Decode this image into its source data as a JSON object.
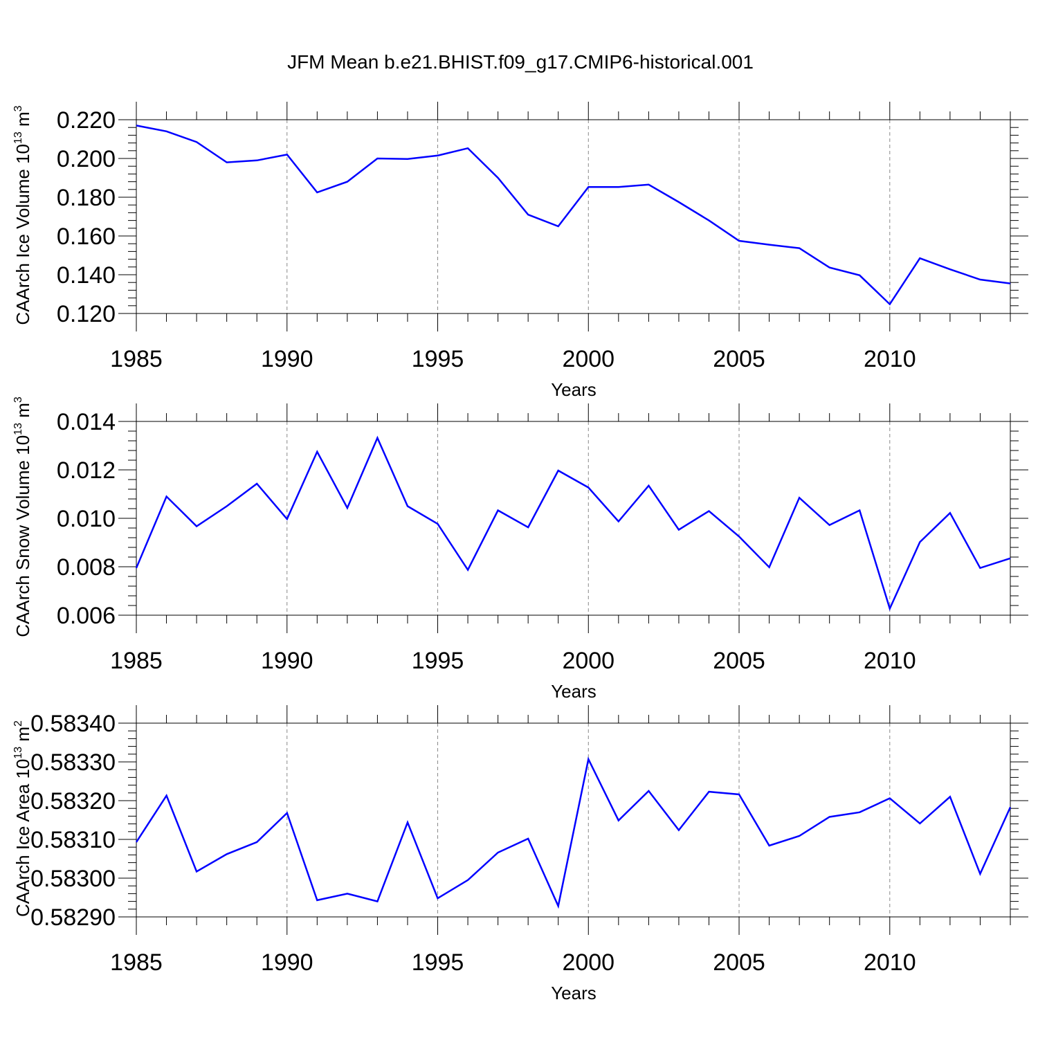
{
  "title": "JFM Mean b.e21.BHIST.f09_g17.CMIP6-historical.001",
  "colors": {
    "line": "#0000ff",
    "axis": "#000000",
    "grid": "#888888",
    "background": "#ffffff"
  },
  "chart_data": [
    {
      "type": "line",
      "ylabel": "CAArch Ice Volume 10",
      "ylabel_exp": "13",
      "ylabel_unit": " m",
      "ylabel_unit_exp": "3",
      "xlabel": "Years",
      "xlim": [
        1985,
        2014
      ],
      "ylim": [
        0.12,
        0.22
      ],
      "xticks": [
        "1985",
        "1990",
        "1995",
        "2000",
        "2005",
        "2010"
      ],
      "yticks": [
        "0.120",
        "0.140",
        "0.160",
        "0.180",
        "0.200",
        "0.220"
      ],
      "grid": "vertical dashed at major x ticks",
      "x": [
        1985,
        1986,
        1987,
        1988,
        1989,
        1990,
        1991,
        1992,
        1993,
        1994,
        1995,
        1996,
        1997,
        1998,
        1999,
        2000,
        2001,
        2002,
        2003,
        2004,
        2005,
        2006,
        2007,
        2008,
        2009,
        2010,
        2011,
        2012,
        2013,
        2014
      ],
      "values": [
        0.217,
        0.214,
        0.2085,
        0.198,
        0.199,
        0.202,
        0.1825,
        0.188,
        0.2,
        0.1997,
        0.2015,
        0.2053,
        0.19,
        0.171,
        0.165,
        0.1853,
        0.1853,
        0.1865,
        0.1775,
        0.168,
        0.1575,
        0.1555,
        0.1537,
        0.1437,
        0.1397,
        0.1248,
        0.1485,
        0.1428,
        0.1375,
        0.1355
      ]
    },
    {
      "type": "line",
      "ylabel": "CAArch Snow Volume 10",
      "ylabel_exp": "13",
      "ylabel_unit": " m",
      "ylabel_unit_exp": "3",
      "xlabel": "Years",
      "xlim": [
        1985,
        2014
      ],
      "ylim": [
        0.006,
        0.014
      ],
      "xticks": [
        "1985",
        "1990",
        "1995",
        "2000",
        "2005",
        "2010"
      ],
      "yticks": [
        "0.006",
        "0.008",
        "0.010",
        "0.012",
        "0.014"
      ],
      "grid": "vertical dashed at major x ticks",
      "x": [
        1985,
        1986,
        1987,
        1988,
        1989,
        1990,
        1991,
        1992,
        1993,
        1994,
        1995,
        1996,
        1997,
        1998,
        1999,
        2000,
        2001,
        2002,
        2003,
        2004,
        2005,
        2006,
        2007,
        2008,
        2009,
        2010,
        2011,
        2012,
        2013,
        2014
      ],
      "values": [
        0.00795,
        0.0109,
        0.00967,
        0.0105,
        0.01143,
        0.00997,
        0.01275,
        0.01043,
        0.01332,
        0.0105,
        0.00977,
        0.00787,
        0.01033,
        0.00963,
        0.01197,
        0.01127,
        0.00987,
        0.01135,
        0.00953,
        0.0103,
        0.00925,
        0.00798,
        0.01085,
        0.00972,
        0.01033,
        0.00627,
        0.00902,
        0.01022,
        0.00795,
        0.00835
      ]
    },
    {
      "type": "line",
      "ylabel": "CAArch Ice Area 10",
      "ylabel_exp": "13",
      "ylabel_unit": " m",
      "ylabel_unit_exp": "2",
      "xlabel": "Years",
      "xlim": [
        1985,
        2014
      ],
      "ylim": [
        0.5829,
        0.5834
      ],
      "xticks": [
        "1985",
        "1990",
        "1995",
        "2000",
        "2005",
        "2010"
      ],
      "yticks": [
        "0.58290",
        "0.58300",
        "0.58310",
        "0.58320",
        "0.58330",
        "0.58340"
      ],
      "grid": "vertical dashed at major x ticks",
      "x": [
        1985,
        1986,
        1987,
        1988,
        1989,
        1990,
        1991,
        1992,
        1993,
        1994,
        1995,
        1996,
        1997,
        1998,
        1999,
        2000,
        2001,
        2002,
        2003,
        2004,
        2005,
        2006,
        2007,
        2008,
        2009,
        2010,
        2011,
        2012,
        2013,
        2014
      ],
      "values": [
        0.583093,
        0.583213,
        0.583017,
        0.583062,
        0.583093,
        0.583168,
        0.582943,
        0.58296,
        0.58294,
        0.583144,
        0.582948,
        0.582995,
        0.583066,
        0.583102,
        0.582928,
        0.583307,
        0.583149,
        0.583225,
        0.583124,
        0.583223,
        0.583216,
        0.583084,
        0.583109,
        0.583158,
        0.58317,
        0.583206,
        0.583141,
        0.58321,
        0.583011,
        0.583183
      ]
    }
  ]
}
